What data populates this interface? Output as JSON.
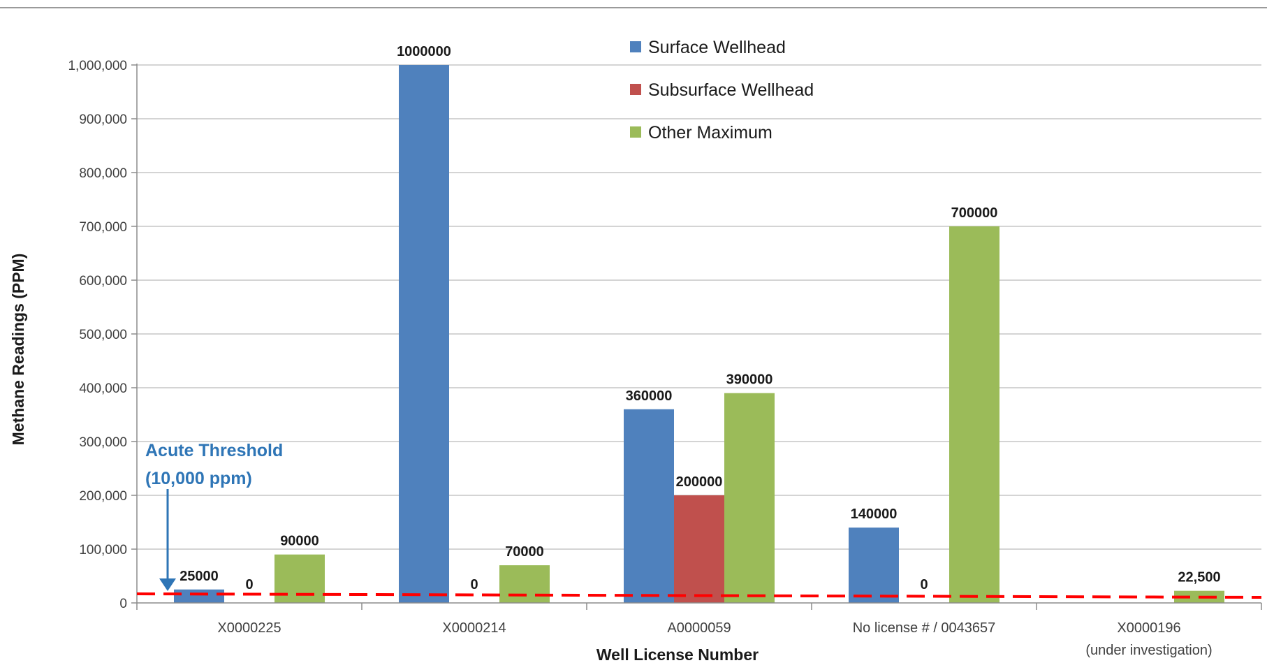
{
  "chart_data": {
    "type": "bar",
    "xlabel": "Well License Number",
    "ylabel": "Methane Readings (PPM)",
    "ylim": [
      0,
      1000000
    ],
    "yticks": [
      0,
      100000,
      200000,
      300000,
      400000,
      500000,
      600000,
      700000,
      800000,
      900000,
      1000000
    ],
    "ytick_labels": [
      "0",
      "100,000",
      "200,000",
      "300,000",
      "400,000",
      "500,000",
      "600,000",
      "700,000",
      "800,000",
      "900,000",
      "1,000,000"
    ],
    "categories": [
      {
        "line1": "X0000225",
        "line2": ""
      },
      {
        "line1": "X0000214",
        "line2": ""
      },
      {
        "line1": "A0000059",
        "line2": ""
      },
      {
        "line1": "No license # / 0043657",
        "line2": ""
      },
      {
        "line1": "X0000196",
        "line2": "(under investigation)"
      }
    ],
    "series": [
      {
        "name": "Surface Wellhead",
        "color": "#4f81bd",
        "values": [
          25000,
          1000000,
          360000,
          140000,
          null
        ],
        "labels": [
          "25000",
          "1000000",
          "360000",
          "140000",
          ""
        ]
      },
      {
        "name": "Subsurface Wellhead",
        "color": "#c0504d",
        "values": [
          0,
          0,
          200000,
          0,
          null
        ],
        "labels": [
          "0",
          "0",
          "200000",
          "0",
          ""
        ]
      },
      {
        "name": "Other Maximum",
        "color": "#9bbb59",
        "values": [
          90000,
          70000,
          390000,
          700000,
          22500
        ],
        "labels": [
          "90000",
          "70000",
          "390000",
          "700000",
          "22,500"
        ]
      }
    ],
    "gridlines": true,
    "legend_position": "top-center",
    "threshold": {
      "value": 10000,
      "color": "#ff0000",
      "style": "dashed",
      "label_line1": "Acute Threshold",
      "label_line2": "(10,000 ppm)",
      "label_color": "#2e75b6"
    }
  }
}
